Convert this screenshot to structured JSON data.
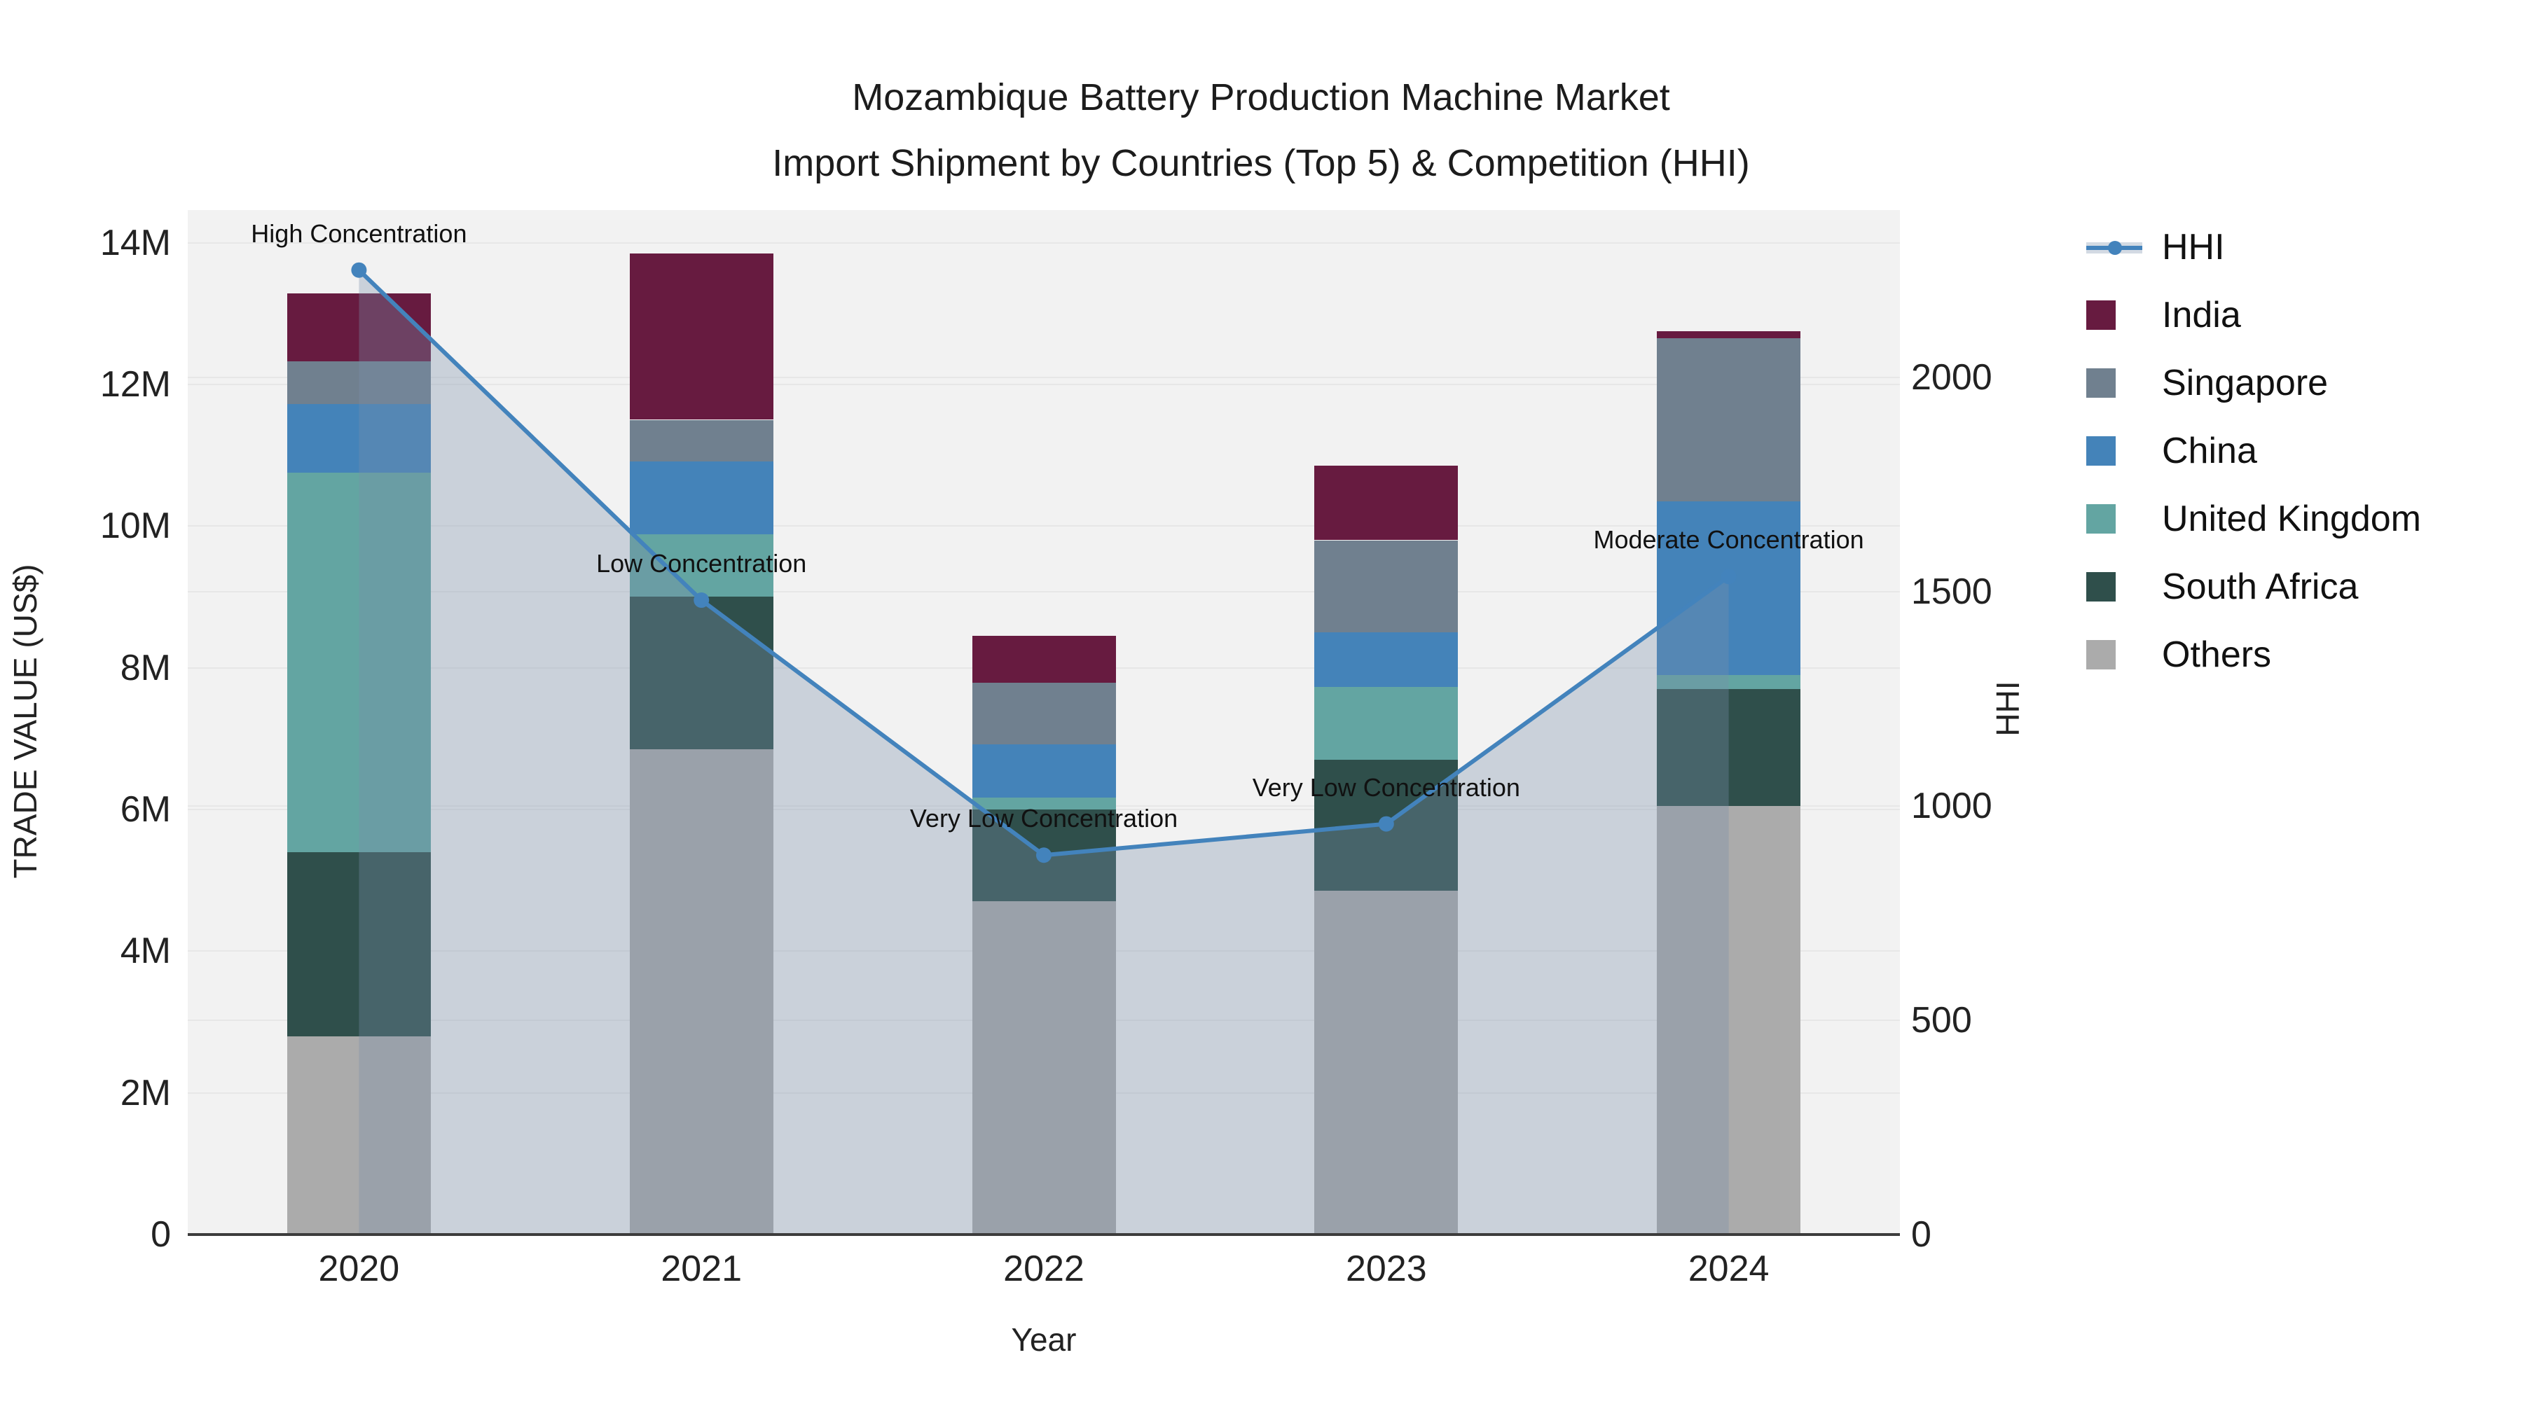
{
  "title": {
    "line1": "Mozambique Battery Production Machine Market",
    "line2": "Import Shipment by Countries (Top 5) & Competition (HHI)"
  },
  "axes": {
    "x_title": "Year",
    "y_left_title": "TRADE VALUE (US$)",
    "y_right_title": "HHI"
  },
  "legend": [
    {
      "label": "HHI",
      "type": "line",
      "color": "#4383bc"
    },
    {
      "label": "India",
      "type": "swatch",
      "color": "#671b40"
    },
    {
      "label": "Singapore",
      "type": "swatch",
      "color": "#70808f"
    },
    {
      "label": "China",
      "type": "swatch",
      "color": "#4483b9"
    },
    {
      "label": "United Kingdom",
      "type": "swatch",
      "color": "#63a5a2"
    },
    {
      "label": "South Africa",
      "type": "swatch",
      "color": "#2f4f4b"
    },
    {
      "label": "Others",
      "type": "swatch",
      "color": "#ababab"
    }
  ],
  "chart_data": {
    "type": [
      "stacked-bar",
      "line"
    ],
    "title": "Mozambique Battery Production Machine Market Import Shipment by Countries (Top 5) & Competition (HHI)",
    "xlabel": "Year",
    "ylabel_left": "TRADE VALUE (US$)",
    "ylabel_right": "HHI",
    "categories": [
      "2020",
      "2021",
      "2022",
      "2023",
      "2024"
    ],
    "values_unit": "million US$",
    "series": [
      {
        "name": "Others",
        "color": "#ababab",
        "values": [
          2.8,
          6.85,
          4.7,
          4.85,
          6.05
        ]
      },
      {
        "name": "South Africa",
        "color": "#2f4f4b",
        "values": [
          2.6,
          2.15,
          1.3,
          1.85,
          1.65
        ]
      },
      {
        "name": "United Kingdom",
        "color": "#63a5a2",
        "values": [
          5.35,
          0.88,
          0.17,
          1.03,
          0.2
        ]
      },
      {
        "name": "China",
        "color": "#4483b9",
        "values": [
          0.97,
          1.03,
          0.75,
          0.77,
          2.45
        ]
      },
      {
        "name": "Singapore",
        "color": "#70808f",
        "values": [
          0.61,
          0.59,
          0.87,
          1.3,
          2.3
        ]
      },
      {
        "name": "India",
        "color": "#671b40",
        "values": [
          0.95,
          2.35,
          0.66,
          1.05,
          0.1
        ]
      }
    ],
    "bar_totals": [
      13.28,
      13.85,
      8.45,
      10.85,
      12.75
    ],
    "hhi": {
      "name": "HHI",
      "line_color": "#4383bc",
      "area_fill": "rgba(122,142,171,0.33)",
      "values": [
        2250,
        1480,
        885,
        958,
        1535
      ]
    },
    "annotations": [
      {
        "year": "2020",
        "text": "High Concentration"
      },
      {
        "year": "2021",
        "text": "Low Concentration"
      },
      {
        "year": "2022",
        "text": "Very Low Concentration"
      },
      {
        "year": "2023",
        "text": "Very Low Concentration"
      },
      {
        "year": "2024",
        "text": "Moderate Concentration"
      }
    ],
    "ylim": [
      0,
      14.46
    ],
    "y2lim": [
      0,
      2390
    ],
    "y_ticks": [
      {
        "v": 0,
        "label": "0"
      },
      {
        "v": 2,
        "label": "2M"
      },
      {
        "v": 4,
        "label": "4M"
      },
      {
        "v": 6,
        "label": "6M"
      },
      {
        "v": 8,
        "label": "8M"
      },
      {
        "v": 10,
        "label": "10M"
      },
      {
        "v": 12,
        "label": "12M"
      },
      {
        "v": 14,
        "label": "14M"
      }
    ],
    "y2_ticks": [
      {
        "v": 0,
        "label": "0"
      },
      {
        "v": 500,
        "label": "500"
      },
      {
        "v": 1000,
        "label": "1000"
      },
      {
        "v": 1500,
        "label": "1500"
      },
      {
        "v": 2000,
        "label": "2000"
      }
    ],
    "grid_left_values": [
      2,
      4,
      6,
      8,
      10,
      12,
      14
    ],
    "grid_right_values": [
      500,
      1000,
      1500,
      2000
    ],
    "legend_position": "right",
    "plot_background": "#f2f2f2"
  }
}
